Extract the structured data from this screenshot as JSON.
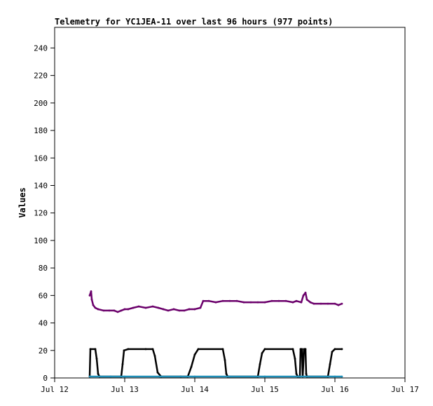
{
  "chart_data": {
    "type": "line",
    "title": "Telemetry for YC1JEA-11 over last 96 hours (977 points)",
    "ylabel": "Values",
    "xlabel": "",
    "x_tick_labels": [
      "Jul 12",
      "Jul 13",
      "Jul 14",
      "Jul 15",
      "Jul 16",
      "Jul 17"
    ],
    "x_range": [
      "Jul 12 00:00",
      "Jul 17 00:00"
    ],
    "x_unit": "day of July",
    "xlim": [
      12,
      17
    ],
    "ylim": [
      0,
      255
    ],
    "y_ticks": [
      0,
      20,
      40,
      60,
      80,
      100,
      120,
      140,
      160,
      180,
      200,
      220,
      240
    ],
    "grid": false,
    "legend": "none",
    "series": [
      {
        "color": "#6b006b",
        "points": [
          [
            12.5,
            60
          ],
          [
            12.52,
            63
          ],
          [
            12.53,
            57
          ],
          [
            12.55,
            53
          ],
          [
            12.58,
            51
          ],
          [
            12.62,
            50
          ],
          [
            12.7,
            49
          ],
          [
            12.78,
            49
          ],
          [
            12.85,
            49
          ],
          [
            12.9,
            48
          ],
          [
            12.95,
            49
          ],
          [
            13.0,
            50
          ],
          [
            13.05,
            50
          ],
          [
            13.12,
            51
          ],
          [
            13.2,
            52
          ],
          [
            13.3,
            51
          ],
          [
            13.4,
            52
          ],
          [
            13.48,
            51
          ],
          [
            13.55,
            50
          ],
          [
            13.62,
            49
          ],
          [
            13.7,
            50
          ],
          [
            13.78,
            49
          ],
          [
            13.85,
            49
          ],
          [
            13.92,
            50
          ],
          [
            14.0,
            50
          ],
          [
            14.08,
            51
          ],
          [
            14.12,
            56
          ],
          [
            14.2,
            56
          ],
          [
            14.3,
            55
          ],
          [
            14.4,
            56
          ],
          [
            14.5,
            56
          ],
          [
            14.6,
            56
          ],
          [
            14.7,
            55
          ],
          [
            14.8,
            55
          ],
          [
            14.9,
            55
          ],
          [
            15.0,
            55
          ],
          [
            15.1,
            56
          ],
          [
            15.2,
            56
          ],
          [
            15.3,
            56
          ],
          [
            15.4,
            55
          ],
          [
            15.45,
            56
          ],
          [
            15.52,
            55
          ],
          [
            15.55,
            60
          ],
          [
            15.58,
            62
          ],
          [
            15.6,
            57
          ],
          [
            15.65,
            55
          ],
          [
            15.7,
            54
          ],
          [
            15.8,
            54
          ],
          [
            15.9,
            54
          ],
          [
            16.0,
            54
          ],
          [
            16.05,
            53
          ],
          [
            16.1,
            54
          ]
        ]
      },
      {
        "color": "#000000",
        "points": [
          [
            12.5,
            1
          ],
          [
            12.51,
            21
          ],
          [
            12.58,
            21
          ],
          [
            12.6,
            14
          ],
          [
            12.62,
            3
          ],
          [
            12.64,
            1
          ],
          [
            12.8,
            1
          ],
          [
            12.95,
            1
          ],
          [
            12.97,
            10
          ],
          [
            12.99,
            20
          ],
          [
            13.05,
            21
          ],
          [
            13.3,
            21
          ],
          [
            13.4,
            21
          ],
          [
            13.43,
            16
          ],
          [
            13.47,
            4
          ],
          [
            13.52,
            1
          ],
          [
            13.8,
            1
          ],
          [
            13.9,
            1
          ],
          [
            13.95,
            8
          ],
          [
            14.0,
            17
          ],
          [
            14.05,
            21
          ],
          [
            14.4,
            21
          ],
          [
            14.43,
            13
          ],
          [
            14.45,
            3
          ],
          [
            14.47,
            1
          ],
          [
            14.9,
            1
          ],
          [
            14.93,
            10
          ],
          [
            14.96,
            18
          ],
          [
            15.0,
            21
          ],
          [
            15.4,
            21
          ],
          [
            15.43,
            14
          ],
          [
            15.45,
            3
          ],
          [
            15.47,
            1
          ],
          [
            15.5,
            1
          ],
          [
            15.51,
            21
          ],
          [
            15.53,
            21
          ],
          [
            15.54,
            1
          ],
          [
            15.56,
            21
          ],
          [
            15.58,
            21
          ],
          [
            15.59,
            3
          ],
          [
            15.6,
            1
          ],
          [
            15.9,
            1
          ],
          [
            15.93,
            10
          ],
          [
            15.96,
            19
          ],
          [
            16.0,
            21
          ],
          [
            16.1,
            21
          ]
        ]
      },
      {
        "color": "#1f8fb8",
        "points": [
          [
            12.5,
            1
          ],
          [
            12.8,
            1
          ],
          [
            13.0,
            1
          ],
          [
            13.5,
            1
          ],
          [
            14.0,
            1
          ],
          [
            14.5,
            1
          ],
          [
            15.0,
            1
          ],
          [
            15.5,
            1
          ],
          [
            16.0,
            1
          ],
          [
            16.1,
            1
          ]
        ]
      }
    ]
  }
}
